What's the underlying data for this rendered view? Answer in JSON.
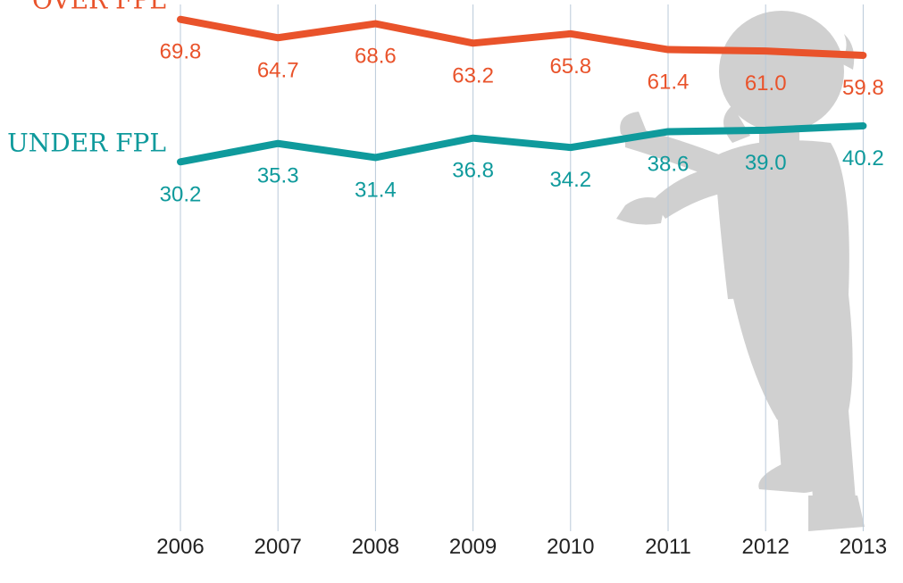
{
  "chart_data": {
    "type": "line",
    "x": [
      "2006",
      "2007",
      "2008",
      "2009",
      "2010",
      "2011",
      "2012",
      "2013"
    ],
    "series": [
      {
        "name": "OVER FPL",
        "color": "#e9532b",
        "values": [
          69.8,
          64.7,
          68.6,
          63.2,
          65.8,
          61.4,
          61.0,
          59.8
        ],
        "labels": [
          "69.8",
          "64.7",
          "68.6",
          "63.2",
          "65.8",
          "61.4",
          "61.0",
          "59.8"
        ]
      },
      {
        "name": "UNDER FPL",
        "color": "#0f9a9c",
        "values": [
          30.2,
          35.3,
          31.4,
          36.8,
          34.2,
          38.6,
          39.0,
          40.2
        ],
        "labels": [
          "30.2",
          "35.3",
          "31.4",
          "36.8",
          "34.2",
          "38.6",
          "39.0",
          "40.2"
        ]
      }
    ],
    "ylim": [
      0,
      100
    ],
    "grid": "vertical",
    "legend": "inline-left",
    "title": "",
    "xlabel": "",
    "ylabel": "",
    "gridline_color": "#b9c9d9",
    "background_figure": "child-silhouette",
    "silhouette_color": "#d0d0d0"
  }
}
